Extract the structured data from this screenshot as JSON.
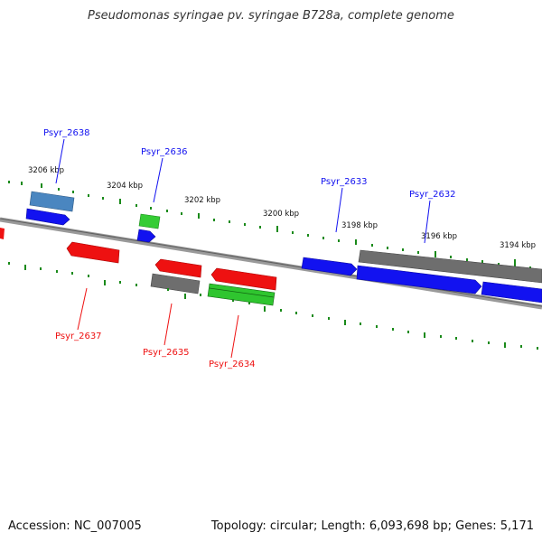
{
  "title": "Pseudomonas syringae pv. syringae B728a, complete genome",
  "accession": "Accession: NC_007005",
  "summary": "Topology: circular; Length: 6,093,698 bp; Genes: 5,171",
  "colors": {
    "blue": "#1515ee",
    "red": "#ee1111",
    "green": "#2fc52f",
    "gray": "#6e6e6e",
    "steel": "#4a86c0",
    "tick": "#1a8a1a",
    "backbone": "#8a8a8a"
  },
  "scale_ticks": [
    {
      "label": "3206 kbp"
    },
    {
      "label": "3204 kbp"
    },
    {
      "label": "3202 kbp"
    },
    {
      "label": "3200 kbp"
    },
    {
      "label": "3198 kbp"
    },
    {
      "label": "3196 kbp"
    },
    {
      "label": "3194 kbp"
    }
  ],
  "genes": [
    {
      "name": "Psyr_2638",
      "strand": "forward",
      "color": "blue"
    },
    {
      "name": "Psyr_2636",
      "strand": "forward",
      "color": "blue"
    },
    {
      "name": "Psyr_2633",
      "strand": "forward",
      "color": "blue"
    },
    {
      "name": "Psyr_2632",
      "strand": "forward",
      "color": "blue"
    },
    {
      "name": "Psyr_2637",
      "strand": "reverse",
      "color": "red"
    },
    {
      "name": "Psyr_2635",
      "strand": "reverse",
      "color": "red"
    },
    {
      "name": "Psyr_2634",
      "strand": "reverse",
      "color": "red"
    }
  ]
}
